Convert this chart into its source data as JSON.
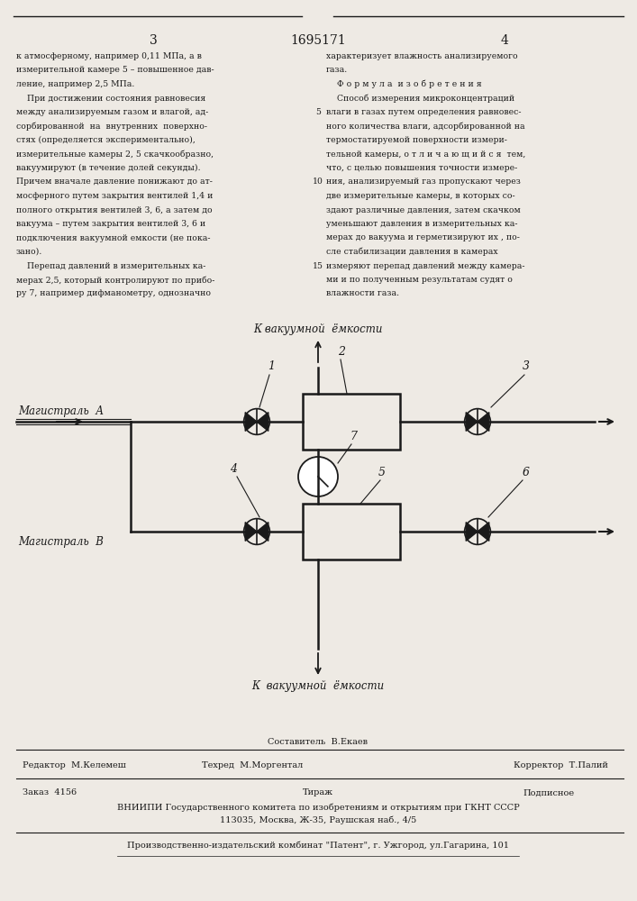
{
  "bg_color": "#eeeae4",
  "text_color": "#1a1a1a",
  "page_width": 7.07,
  "page_height": 10.0,
  "header_number_left": "3",
  "header_title": "1695171",
  "header_number_right": "4",
  "left_col_lines": [
    "к атмосферному, например 0,11 МПа, а в",
    "измерительной камере 5 – повышенное дав-",
    "ление, например 2,5 МПа.",
    "    При достижении состояния равновесия",
    "между анализируемым газом и влагой, ад-",
    "сорбированной  на  внутренних  поверхно-",
    "стях (определяется экспериментально),",
    "измерительные камеры 2, 5 скачкообразно,",
    "вакуумируют (в течение долей секунды).",
    "Причем вначале давление понижают до ат-",
    "мосферного путем закрытия вентилей 1,4 и",
    "полного открытия вентилей 3, 6, а затем до",
    "вакуума – путем закрытия вентилей 3, 6 и",
    "подключения вакуумной емкости (не пока-",
    "зано).",
    "    Перепад давлений в измерительных ка-",
    "мерах 2,5, который контролируют по прибо-",
    "ру 7, например дифманометру, однозначно"
  ],
  "left_col_line_numbers": [
    null,
    null,
    null,
    null,
    "5",
    null,
    null,
    null,
    null,
    "10",
    null,
    null,
    null,
    null,
    null,
    "15",
    null,
    null
  ],
  "right_col_lines": [
    "характеризует влажность анализируемого",
    "газа.",
    "    Ф о р м у л а  и з о б р е т е н и я",
    "    Способ измерения микроконцентраций",
    "влаги в газах путем определения равновес-",
    "ного количества влаги, адсорбированной на",
    "термостатируемой поверхности измери-",
    "тельной камеры, о т л и ч а ю щ и й с я  тем,",
    "что, с целью повышения точности измере-",
    "ния, анализируемый газ пропускают через",
    "две измерительные камеры, в которых со-",
    "здают различные давления, затем скачком",
    "уменьшают давления в измерительных ка-",
    "мерах до вакуума и герметизируют их , по-",
    "сле стабилизации давления в камерах",
    "измеряют перепад давлений между камера-",
    "ми и по полученным результатам судят о",
    "влажности газа."
  ],
  "diagram_label_top": "К вакуумной  ёмкости",
  "diagram_label_bottom": "К  вакуумной  ёмкости",
  "diagram_label_magA": "Магистраль  А",
  "diagram_label_magB": "Магистраль  В",
  "footer_line1_left": "Редактор  М.Келемеш",
  "footer_line1_mid1": "Составитель  В.Екаев",
  "footer_line1_mid2": "Техред  М.Моргентал",
  "footer_line1_right": "Корректор  Т.Палий",
  "footer_line2_left": "Заказ  4156",
  "footer_line2_mid": "Тираж",
  "footer_line2_right": "Подписное",
  "footer_line3": "ВНИИПИ Государственного комитета по изобретениям и открытиям при ГКНТ СССР",
  "footer_line4": "113035, Москва, Ж-35, Раушская наб., 4/5",
  "footer_line5": "Производственно-издательский комбинат \"Патент\", г. Ужгород, ул.Гагарина, 101"
}
